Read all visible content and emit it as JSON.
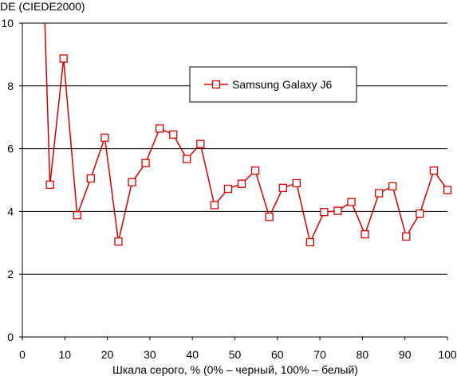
{
  "chart_data": {
    "type": "line",
    "ylabel": "DE (CIEDE2000)",
    "xlabel": "Шкала серого, % (0% – черный, 100% – белый)",
    "xlim": [
      0,
      100
    ],
    "ylim": [
      0,
      10
    ],
    "x_ticks": [
      0,
      10,
      20,
      30,
      40,
      50,
      60,
      70,
      80,
      90,
      100
    ],
    "y_ticks": [
      0,
      2,
      4,
      6,
      8,
      10
    ],
    "x_tick_labels": [
      "0",
      "10",
      "20",
      "30",
      "40",
      "50",
      "60",
      "70",
      "80",
      "90",
      "100"
    ],
    "y_tick_labels": [
      "0",
      "2",
      "4",
      "6",
      "8",
      "10"
    ],
    "grid": "horizontal",
    "legend_position": "top-right",
    "colors": {
      "series": "#d40000",
      "grid": "#000000",
      "background": "#ffffff"
    },
    "series": [
      {
        "name": "Samsung Galaxy J6",
        "marker": "square",
        "x": [
          6.5,
          9.7,
          12.9,
          16.1,
          19.4,
          22.6,
          25.8,
          29.0,
          32.3,
          35.5,
          38.7,
          41.9,
          45.2,
          48.4,
          51.6,
          54.8,
          58.1,
          61.3,
          64.5,
          67.7,
          71.0,
          74.2,
          77.4,
          80.6,
          83.9,
          87.1,
          90.3,
          93.5,
          96.8,
          100
        ],
        "y": [
          4.85,
          8.87,
          3.88,
          5.05,
          6.35,
          3.04,
          4.93,
          5.54,
          6.64,
          6.45,
          5.67,
          6.15,
          4.2,
          4.72,
          4.88,
          5.3,
          3.83,
          4.75,
          4.9,
          3.02,
          3.98,
          4.02,
          4.3,
          3.27,
          4.58,
          4.8,
          3.2,
          3.93,
          5.3,
          4.68
        ]
      }
    ],
    "leading_segment": {
      "x": [
        5.3,
        6.5
      ],
      "y": [
        10.0,
        4.85
      ]
    }
  }
}
